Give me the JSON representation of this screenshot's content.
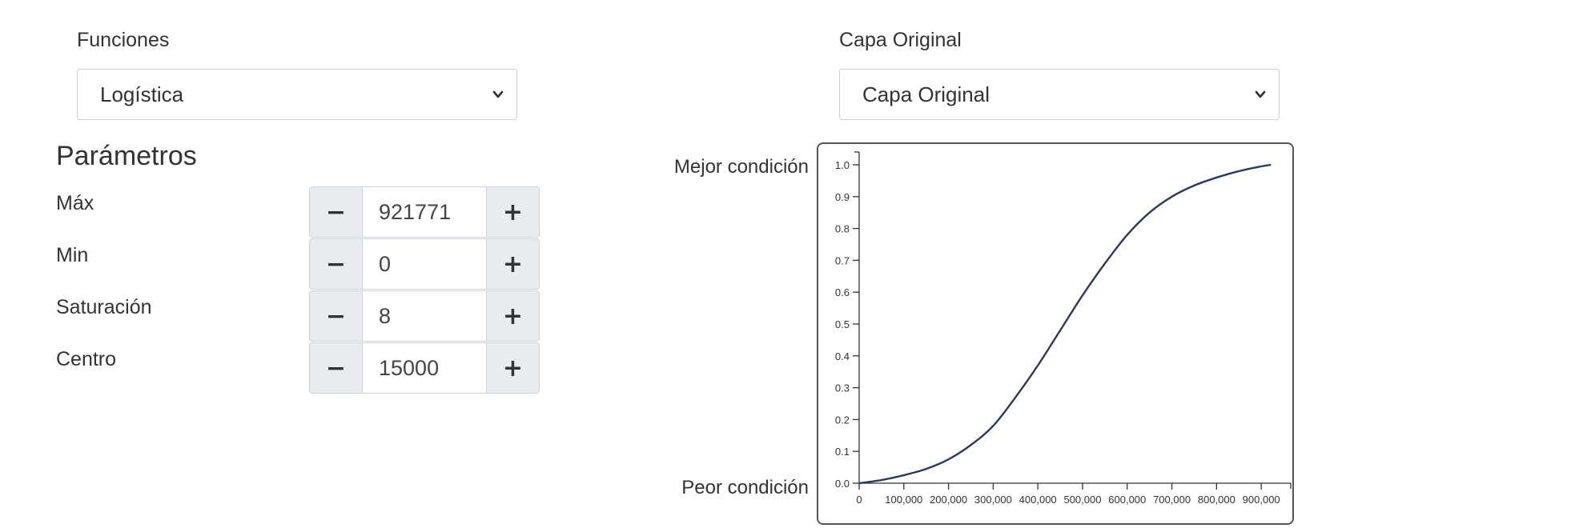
{
  "functions": {
    "label": "Funciones",
    "selected": "Logística"
  },
  "layer": {
    "label": "Capa Original",
    "selected": "Capa Original"
  },
  "params": {
    "heading": "Parámetros",
    "items": [
      {
        "label": "Máx",
        "value": "921771"
      },
      {
        "label": "Min",
        "value": "0"
      },
      {
        "label": "Saturación",
        "value": "8"
      },
      {
        "label": "Centro",
        "value": "15000"
      }
    ]
  },
  "conditions": {
    "best": "Mejor condición",
    "worst": "Peor condición"
  },
  "chart_data": {
    "type": "line",
    "x": [
      0,
      50000,
      100000,
      150000,
      200000,
      250000,
      300000,
      350000,
      400000,
      450000,
      500000,
      550000,
      600000,
      650000,
      700000,
      750000,
      800000,
      850000,
      900000,
      921771
    ],
    "series": [
      {
        "values": [
          0.0,
          0.01,
          0.025,
          0.045,
          0.075,
          0.12,
          0.18,
          0.27,
          0.37,
          0.48,
          0.59,
          0.69,
          0.78,
          0.85,
          0.9,
          0.935,
          0.96,
          0.98,
          0.995,
          1.0
        ]
      }
    ],
    "xlim": [
      0,
      921771
    ],
    "ylim": [
      0,
      1
    ],
    "x_ticks": [
      0,
      100000,
      200000,
      300000,
      400000,
      500000,
      600000,
      700000,
      800000,
      900000
    ],
    "x_tick_labels": [
      "0",
      "100,000",
      "200,000",
      "300,000",
      "400,000",
      "500,000",
      "600,000",
      "700,000",
      "800,000",
      "900,000"
    ],
    "y_ticks": [
      0.0,
      0.1,
      0.2,
      0.3,
      0.4,
      0.5,
      0.6,
      0.7,
      0.8,
      0.9,
      1.0
    ],
    "y_tick_labels": [
      "0.0",
      "0.1",
      "0.2",
      "0.3",
      "0.4",
      "0.5",
      "0.6",
      "0.7",
      "0.8",
      "0.9",
      "1.0"
    ],
    "line_color": "#2a3a5c",
    "grid": false
  }
}
